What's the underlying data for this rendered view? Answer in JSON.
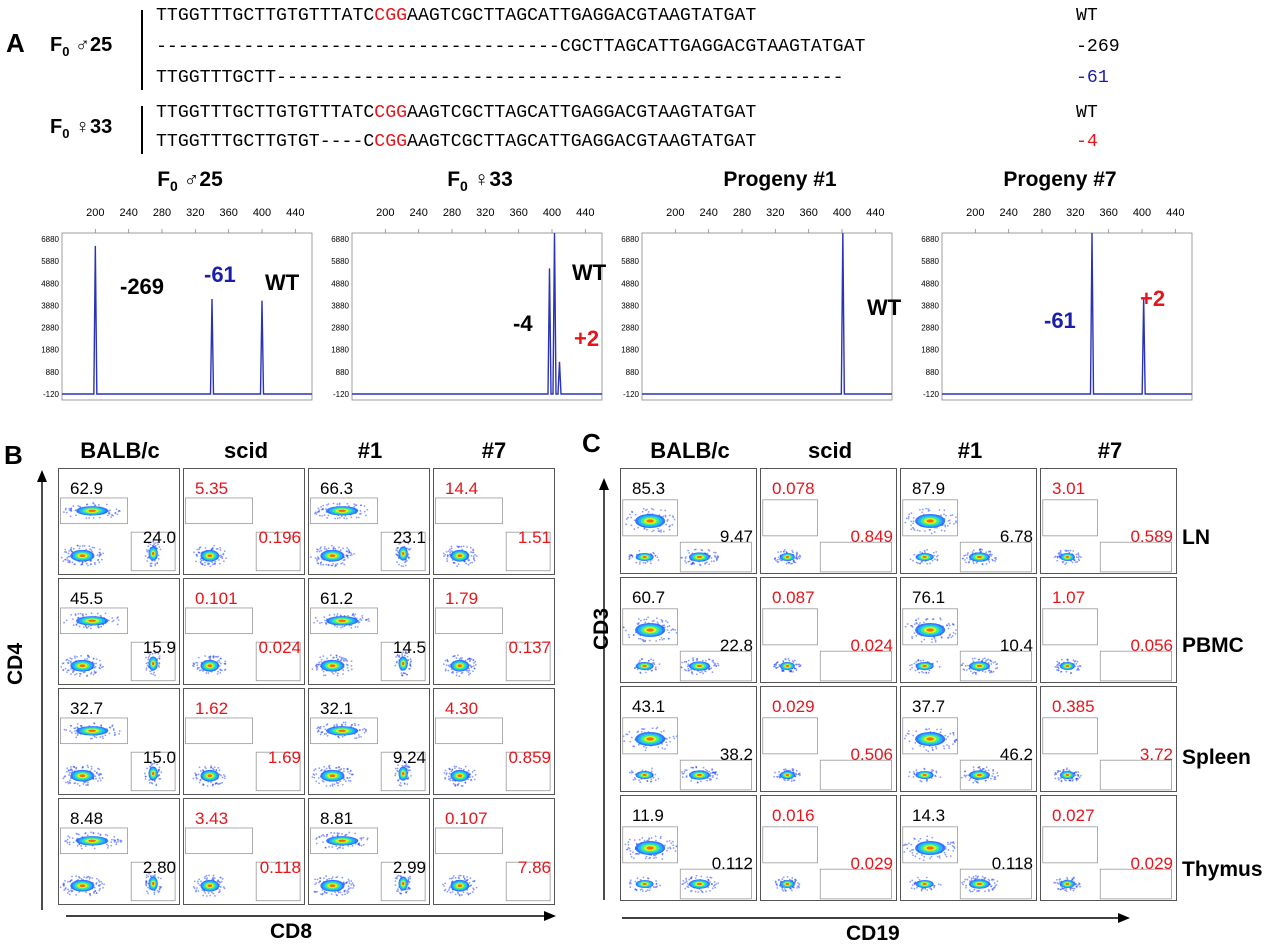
{
  "panelA": {
    "letter": "A",
    "group1": {
      "label_f": "F",
      "label_sub": "0",
      "label_rest": " ♂25",
      "seq1": {
        "pre": "TTGGTTTGCTTGTGTTTATC",
        "pam": "CGG",
        "post": "AAGTCGCTTAGCATTGAGGACGTAAGTATGAT",
        "tag": "WT"
      },
      "seq2": {
        "text": "-------------------------------------CGCTTAGCATTGAGGACGTAAGTATGAT",
        "tag": "-269"
      },
      "seq3": {
        "text": "TTGGTTTGCTT----------------------------------------------------",
        "tag": "-61"
      }
    },
    "group2": {
      "label_f": "F",
      "label_sub": "0",
      "label_rest": " ♀33",
      "seq1": {
        "pre": "TTGGTTTGCTTGTGTTTATC",
        "pam": "CGG",
        "post": "AAGTCGCTTAGCATTGAGGACGTAAGTATGAT",
        "tag": "WT"
      },
      "seq2": {
        "pre": "TTGGTTTGCTTGTGT----C",
        "pam": "CGG",
        "post": "AAGTCGCTTAGCATTGAGGACGTAAGTATGAT",
        "tag": "-4"
      }
    },
    "traces": [
      {
        "title_f": "F",
        "title_sub": "0",
        "title_rest": " ♂25",
        "xticks": [
          "200",
          "240",
          "280",
          "320",
          "360",
          "400",
          "440"
        ],
        "yticks": [
          "6880",
          "5880",
          "4880",
          "3880",
          "2880",
          "1880",
          "880",
          "-120"
        ],
        "peaks": [
          {
            "x": 200,
            "h": 0.92
          },
          {
            "x": 340,
            "h": 0.59
          },
          {
            "x": 400,
            "h": 0.58
          }
        ],
        "labels": [
          {
            "text": "-269",
            "color": "#000000"
          },
          {
            "text": "-61",
            "color": "#1b1fa8"
          },
          {
            "text": "WT",
            "color": "#000000"
          }
        ]
      },
      {
        "title_f": "F",
        "title_sub": "0",
        "title_rest": " ♀33",
        "xticks": [
          "200",
          "240",
          "280",
          "320",
          "360",
          "400",
          "440"
        ],
        "yticks": [
          "6880",
          "5880",
          "4880",
          "3880",
          "2880",
          "1880",
          "880",
          "-120"
        ],
        "peaks": [
          {
            "x": 397,
            "h": 0.78
          },
          {
            "x": 403,
            "h": 1.0
          },
          {
            "x": 409,
            "h": 0.2
          }
        ],
        "labels": [
          {
            "text": "WT",
            "color": "#000000"
          },
          {
            "text": "-4",
            "color": "#000000"
          },
          {
            "text": "+2",
            "color": "#e8141b"
          }
        ]
      },
      {
        "title_f": "Progeny #1",
        "title_sub": "",
        "title_rest": "",
        "xticks": [
          "200",
          "240",
          "280",
          "320",
          "360",
          "400",
          "440"
        ],
        "yticks": [
          "6880",
          "5880",
          "4880",
          "3880",
          "2880",
          "1880",
          "880",
          "-120"
        ],
        "peaks": [
          {
            "x": 401,
            "h": 1.0
          }
        ],
        "labels": [
          {
            "text": "WT",
            "color": "#000000"
          }
        ]
      },
      {
        "title_f": "Progeny #7",
        "title_sub": "",
        "title_rest": "",
        "xticks": [
          "200",
          "240",
          "280",
          "320",
          "360",
          "400",
          "440"
        ],
        "yticks": [
          "6880",
          "5880",
          "4880",
          "3880",
          "2880",
          "1880",
          "880",
          "-120"
        ],
        "peaks": [
          {
            "x": 340,
            "h": 1.0
          },
          {
            "x": 402,
            "h": 0.6
          }
        ],
        "labels": [
          {
            "text": "-61",
            "color": "#1b1fa8"
          },
          {
            "text": "+2",
            "color": "#e8141b"
          }
        ]
      }
    ]
  },
  "panelB": {
    "letter": "B",
    "columns": [
      "BALB/c",
      "scid",
      "#1",
      "#7"
    ],
    "yaxis": "CD4",
    "xaxis": "CD8",
    "rows": [
      [
        {
          "top": "62.9",
          "bot": "24.0",
          "red": false
        },
        {
          "top": "5.35",
          "bot": "0.196",
          "red": true
        },
        {
          "top": "66.3",
          "bot": "23.1",
          "red": false
        },
        {
          "top": "14.4",
          "bot": "1.51",
          "red": true
        }
      ],
      [
        {
          "top": "45.5",
          "bot": "15.9",
          "red": false
        },
        {
          "top": "0.101",
          "bot": "0.024",
          "red": true
        },
        {
          "top": "61.2",
          "bot": "14.5",
          "red": false
        },
        {
          "top": "1.79",
          "bot": "0.137",
          "red": true
        }
      ],
      [
        {
          "top": "32.7",
          "bot": "15.0",
          "red": false
        },
        {
          "top": "1.62",
          "bot": "1.69",
          "red": true
        },
        {
          "top": "32.1",
          "bot": "9.24",
          "red": false
        },
        {
          "top": "4.30",
          "bot": "0.859",
          "red": true
        }
      ],
      [
        {
          "top": "8.48",
          "bot": "2.80",
          "red": false
        },
        {
          "top": "3.43",
          "bot": "0.118",
          "red": true
        },
        {
          "top": "8.81",
          "bot": "2.99",
          "red": false
        },
        {
          "top": "0.107",
          "bot": "7.86",
          "red": true
        }
      ]
    ]
  },
  "panelC": {
    "letter": "C",
    "columns": [
      "BALB/c",
      "scid",
      "#1",
      "#7"
    ],
    "yaxis": "CD3",
    "xaxis": "CD19",
    "tissues": [
      "LN",
      "PBMC",
      "Spleen",
      "Thymus"
    ],
    "rows": [
      [
        {
          "top": "85.3",
          "bot": "9.47",
          "red": false
        },
        {
          "top": "0.078",
          "bot": "0.849",
          "red": true
        },
        {
          "top": "87.9",
          "bot": "6.78",
          "red": false
        },
        {
          "top": "3.01",
          "bot": "0.589",
          "red": true
        }
      ],
      [
        {
          "top": "60.7",
          "bot": "22.8",
          "red": false
        },
        {
          "top": "0.087",
          "bot": "0.024",
          "red": true
        },
        {
          "top": "76.1",
          "bot": "10.4",
          "red": false
        },
        {
          "top": "1.07",
          "bot": "0.056",
          "red": true
        }
      ],
      [
        {
          "top": "43.1",
          "bot": "38.2",
          "red": false
        },
        {
          "top": "0.029",
          "bot": "0.506",
          "red": true
        },
        {
          "top": "37.7",
          "bot": "46.2",
          "red": false
        },
        {
          "top": "0.385",
          "bot": "3.72",
          "red": true
        }
      ],
      [
        {
          "top": "11.9",
          "bot": "0.112",
          "red": false
        },
        {
          "top": "0.016",
          "bot": "0.029",
          "red": true
        },
        {
          "top": "14.3",
          "bot": "0.118",
          "red": false
        },
        {
          "top": "0.027",
          "bot": "0.029",
          "red": true
        }
      ]
    ]
  },
  "colors": {
    "red": "#e8141b",
    "blue": "#1b1fa8",
    "trace": "#2a33b8"
  }
}
